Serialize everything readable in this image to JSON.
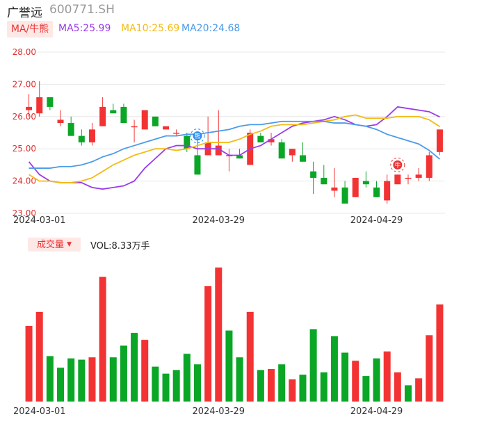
{
  "header": {
    "name": "广誉远",
    "code": "600771.SH"
  },
  "ma_legend": {
    "tag": "MA/牛熊",
    "ma5": "MA5:25.99",
    "ma10": "MA10:25.69",
    "ma20": "MA20:24.68",
    "colors": {
      "ma5": "#9b3bea",
      "ma10": "#f4bb14",
      "ma20": "#4b9be9"
    }
  },
  "volume_legend": {
    "tag": "成交量",
    "value": "VOL:8.33万手"
  },
  "colors": {
    "up": "#f33333",
    "down": "#0aa626",
    "axis_label": "#e03030",
    "grid": "#e8e8e8"
  },
  "chart_data": [
    {
      "type": "candlestick",
      "yaxis": {
        "ticks": [
          "28.00",
          "27.00",
          "26.00",
          "25.00",
          "24.00",
          "23.00"
        ],
        "ylim": [
          23,
          28
        ]
      },
      "x_tick_labels": [
        {
          "index": 1,
          "label": "2024-03-01"
        },
        {
          "index": 18,
          "label": "2024-03-29"
        },
        {
          "index": 33,
          "label": "2024-04-29"
        }
      ],
      "candles": [
        {
          "o": 26.2,
          "h": 26.7,
          "l": 26.0,
          "c": 26.3
        },
        {
          "o": 26.1,
          "h": 27.1,
          "l": 26.0,
          "c": 26.6
        },
        {
          "o": 26.6,
          "h": 26.6,
          "l": 26.2,
          "c": 26.3
        },
        {
          "o": 25.8,
          "h": 26.2,
          "l": 25.7,
          "c": 25.9
        },
        {
          "o": 25.8,
          "h": 26.0,
          "l": 25.4,
          "c": 25.4
        },
        {
          "o": 25.4,
          "h": 25.6,
          "l": 25.1,
          "c": 25.2
        },
        {
          "o": 25.2,
          "h": 25.8,
          "l": 25.1,
          "c": 25.6
        },
        {
          "o": 25.7,
          "h": 26.6,
          "l": 25.7,
          "c": 26.3
        },
        {
          "o": 26.2,
          "h": 26.4,
          "l": 26.1,
          "c": 26.1
        },
        {
          "o": 26.3,
          "h": 26.4,
          "l": 25.8,
          "c": 25.8
        },
        {
          "o": 25.7,
          "h": 25.9,
          "l": 25.2,
          "c": 25.7
        },
        {
          "o": 25.6,
          "h": 26.2,
          "l": 25.6,
          "c": 26.2
        },
        {
          "o": 26.0,
          "h": 26.0,
          "l": 25.7,
          "c": 25.7
        },
        {
          "o": 25.6,
          "h": 25.7,
          "l": 25.6,
          "c": 25.7
        },
        {
          "o": 25.5,
          "h": 25.6,
          "l": 25.4,
          "c": 25.5
        },
        {
          "o": 25.4,
          "h": 25.5,
          "l": 24.9,
          "c": 25.0
        },
        {
          "o": 24.8,
          "h": 25.3,
          "l": 24.2,
          "c": 24.2
        },
        {
          "o": 24.8,
          "h": 26.0,
          "l": 24.8,
          "c": 25.2
        },
        {
          "o": 24.8,
          "h": 26.2,
          "l": 24.8,
          "c": 25.1
        },
        {
          "o": 24.8,
          "h": 25.0,
          "l": 24.3,
          "c": 24.8
        },
        {
          "o": 24.8,
          "h": 25.0,
          "l": 24.7,
          "c": 24.7
        },
        {
          "o": 24.5,
          "h": 25.6,
          "l": 24.5,
          "c": 25.5
        },
        {
          "o": 25.4,
          "h": 25.5,
          "l": 25.2,
          "c": 25.2
        },
        {
          "o": 25.2,
          "h": 25.5,
          "l": 25.1,
          "c": 25.3
        },
        {
          "o": 25.2,
          "h": 25.3,
          "l": 24.7,
          "c": 24.7
        },
        {
          "o": 24.8,
          "h": 25.0,
          "l": 24.6,
          "c": 25.0
        },
        {
          "o": 24.8,
          "h": 25.2,
          "l": 24.6,
          "c": 24.6
        },
        {
          "o": 24.3,
          "h": 24.6,
          "l": 23.6,
          "c": 24.1
        },
        {
          "o": 24.1,
          "h": 24.5,
          "l": 23.9,
          "c": 23.9
        },
        {
          "o": 23.7,
          "h": 24.4,
          "l": 23.5,
          "c": 23.8
        },
        {
          "o": 23.8,
          "h": 24.0,
          "l": 23.3,
          "c": 23.3
        },
        {
          "o": 23.5,
          "h": 24.1,
          "l": 23.5,
          "c": 24.1
        },
        {
          "o": 24.0,
          "h": 24.3,
          "l": 23.8,
          "c": 23.9
        },
        {
          "o": 23.8,
          "h": 24.0,
          "l": 23.5,
          "c": 23.5
        },
        {
          "o": 23.4,
          "h": 24.2,
          "l": 23.3,
          "c": 24.0
        },
        {
          "o": 23.9,
          "h": 24.2,
          "l": 23.9,
          "c": 24.2
        },
        {
          "o": 24.1,
          "h": 24.2,
          "l": 23.9,
          "c": 24.1
        },
        {
          "o": 24.1,
          "h": 24.4,
          "l": 24.0,
          "c": 24.2
        },
        {
          "o": 24.1,
          "h": 24.9,
          "l": 24.0,
          "c": 24.8
        },
        {
          "o": 24.9,
          "h": 25.6,
          "l": 24.8,
          "c": 25.6
        }
      ],
      "ma5": [
        24.6,
        24.2,
        24.0,
        23.95,
        23.95,
        23.95,
        23.8,
        23.75,
        23.8,
        23.85,
        24.0,
        24.4,
        24.7,
        25.0,
        25.1,
        25.1,
        25.0,
        25.0,
        25.0,
        24.8,
        24.8,
        25.0,
        25.1,
        25.3,
        25.5,
        25.7,
        25.8,
        25.85,
        25.9,
        26.0,
        25.9,
        25.75,
        25.7,
        25.75,
        26.0,
        26.3,
        26.25,
        26.2,
        26.15,
        25.99
      ],
      "ma10": [
        24.2,
        24.0,
        24.0,
        23.95,
        23.95,
        24.0,
        24.1,
        24.3,
        24.5,
        24.65,
        24.8,
        24.9,
        25.0,
        25.0,
        24.95,
        25.0,
        25.1,
        25.2,
        25.2,
        25.2,
        25.3,
        25.45,
        25.55,
        25.7,
        25.75,
        25.75,
        25.75,
        25.8,
        25.85,
        25.9,
        26.0,
        26.05,
        25.95,
        25.95,
        25.95,
        26.0,
        26.0,
        26.0,
        25.9,
        25.69
      ],
      "ma20": [
        24.4,
        24.4,
        24.4,
        24.45,
        24.45,
        24.5,
        24.6,
        24.75,
        24.85,
        25.0,
        25.1,
        25.2,
        25.3,
        25.4,
        25.4,
        25.45,
        25.45,
        25.5,
        25.55,
        25.6,
        25.7,
        25.75,
        25.75,
        25.8,
        25.85,
        25.85,
        25.85,
        25.85,
        25.85,
        25.8,
        25.8,
        25.75,
        25.7,
        25.6,
        25.45,
        25.35,
        25.25,
        25.15,
        24.95,
        24.68
      ],
      "markers": [
        {
          "index": 16,
          "value": 25.4,
          "label": "熊",
          "color": "#2a8cf0"
        },
        {
          "index": 35,
          "value": 24.5,
          "label": "牛",
          "color": "#e83535"
        }
      ]
    },
    {
      "type": "bar",
      "series_name": "成交量",
      "ylim": [
        0,
        13
      ],
      "values": [
        6.5,
        7.7,
        3.9,
        2.9,
        3.7,
        3.6,
        3.8,
        10.7,
        3.8,
        4.8,
        5.9,
        5.3,
        3.0,
        2.4,
        2.7,
        4.1,
        3.2,
        9.9,
        11.5,
        6.1,
        3.8,
        7.7,
        2.7,
        2.8,
        3.2,
        1.9,
        2.3,
        6.2,
        2.5,
        5.6,
        4.2,
        3.5,
        2.2,
        3.7,
        4.3,
        2.5,
        1.4,
        2.0,
        5.7,
        8.33
      ],
      "up": [
        true,
        true,
        false,
        false,
        false,
        false,
        true,
        true,
        false,
        false,
        false,
        true,
        false,
        false,
        false,
        false,
        false,
        true,
        true,
        false,
        false,
        true,
        false,
        true,
        false,
        true,
        false,
        false,
        false,
        false,
        false,
        true,
        false,
        false,
        true,
        true,
        false,
        true,
        true,
        true
      ]
    }
  ]
}
